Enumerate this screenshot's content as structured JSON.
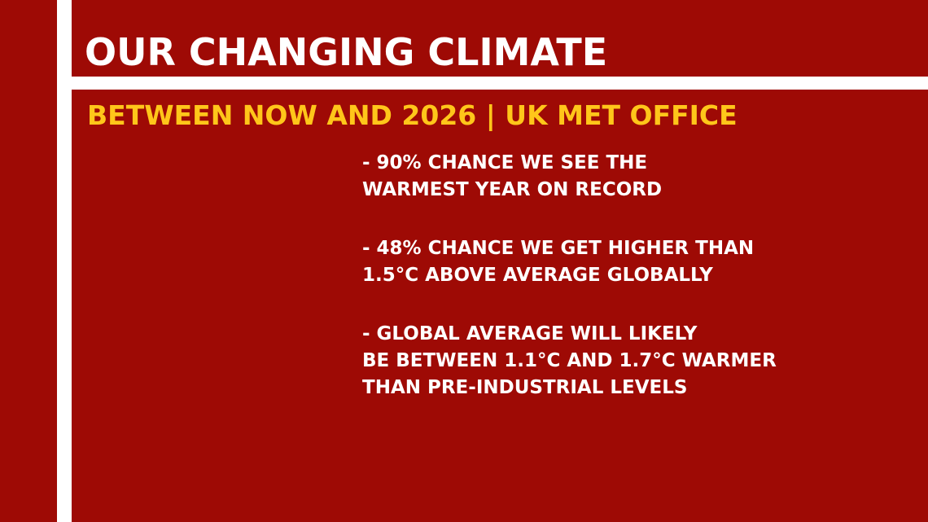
{
  "slide": {
    "title": "OUR CHANGING CLIMATE",
    "subtitle": "BETWEEN NOW AND 2026 | UK MET OFFICE",
    "bullets": [
      {
        "lines": [
          "- 90% CHANCE WE SEE THE",
          "WARMEST YEAR ON RECORD"
        ]
      },
      {
        "lines": [
          "- 48% CHANCE WE GET HIGHER THAN",
          "1.5°C ABOVE AVERAGE GLOBALLY"
        ]
      },
      {
        "lines": [
          "-  GLOBAL AVERAGE WILL LIKELY",
          "BE BETWEEN 1.1°C AND 1.7°C WARMER",
          "THAN PRE-INDUSTRIAL LEVELS"
        ]
      }
    ]
  },
  "colors": {
    "background": "#9e0a05",
    "frame": "#ffffff",
    "title": "#ffffff",
    "subtitle": "#ffc61a",
    "body_text": "#ffffff"
  }
}
